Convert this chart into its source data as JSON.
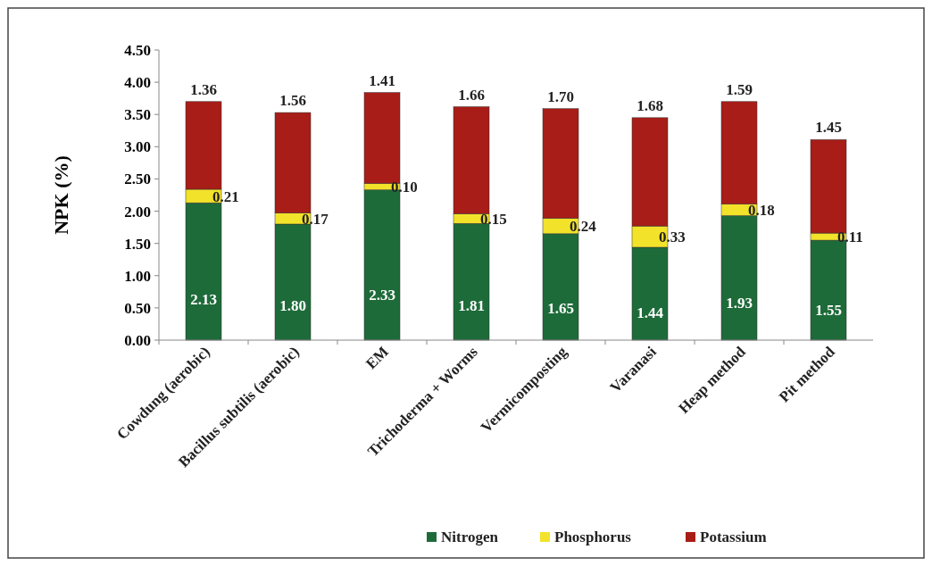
{
  "chart_data": {
    "type": "bar",
    "stacked": true,
    "ylabel": "NPK (%)",
    "categories": [
      "Cowdung (aerobic)",
      "Bacillus subtilis (aerobic)",
      "EM",
      "Trichoderma + Worms",
      "Vermicomposting",
      "Varanasi",
      "Heap method",
      "Pit method"
    ],
    "series": [
      {
        "name": "Nitrogen",
        "color": "#1e6b3a",
        "values": [
          2.13,
          1.8,
          2.33,
          1.81,
          1.65,
          1.44,
          1.93,
          1.55
        ],
        "value_labels": [
          "2.13",
          "1.80",
          "2.33",
          "1.81",
          "1.65",
          "1.44",
          "1.93",
          "1.55"
        ]
      },
      {
        "name": "Phosphorus",
        "color": "#f2e22a",
        "values": [
          0.21,
          0.17,
          0.1,
          0.15,
          0.24,
          0.33,
          0.18,
          0.11
        ],
        "value_labels": [
          "0.21",
          "0.17",
          "0.10",
          "0.15",
          "0.24",
          "0.33",
          "0.18",
          "0.11"
        ]
      },
      {
        "name": "Potassium",
        "color": "#a81d17",
        "values": [
          1.36,
          1.56,
          1.41,
          1.66,
          1.7,
          1.68,
          1.59,
          1.45
        ],
        "value_labels": [
          "1.36",
          "1.56",
          "1.41",
          "1.66",
          "1.70",
          "1.68",
          "1.59",
          "1.45"
        ]
      }
    ],
    "ylim": [
      0,
      4.5
    ],
    "yticks": [
      {
        "value": 0,
        "label": "0.00"
      },
      {
        "value": 0.5,
        "label": "0.50"
      },
      {
        "value": 1,
        "label": "1.00"
      },
      {
        "value": 1.5,
        "label": "1.50"
      },
      {
        "value": 2,
        "label": "2.00"
      },
      {
        "value": 2.5,
        "label": "2.50"
      },
      {
        "value": 3,
        "label": "3.00"
      },
      {
        "value": 3.5,
        "label": "3.50"
      },
      {
        "value": 4,
        "label": "4.00"
      },
      {
        "value": 4.5,
        "label": "4.50"
      }
    ],
    "legend": "bottom",
    "grid": false
  }
}
